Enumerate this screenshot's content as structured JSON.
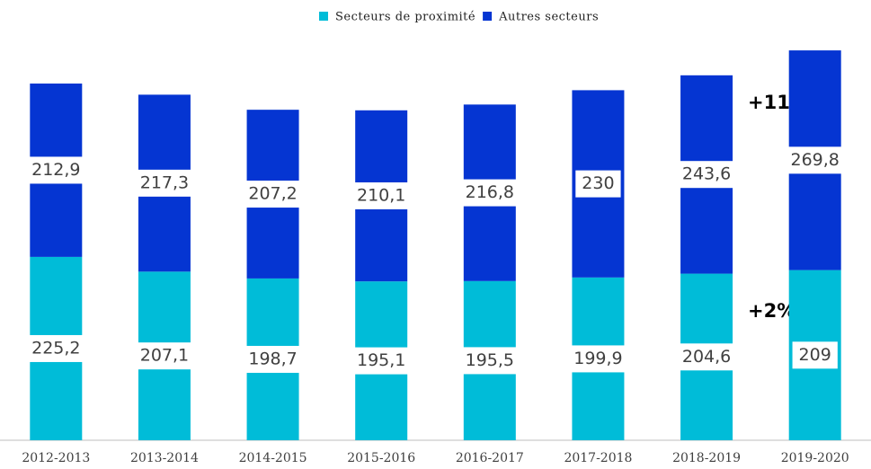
{
  "chart_data": {
    "type": "stacked_bar",
    "categories": [
      "2012-2013",
      "2013-2014",
      "2014-2015",
      "2015-2016",
      "2016-2017",
      "2017-2018",
      "2018-2019",
      "2019-2020"
    ],
    "series": [
      {
        "name": "Secteurs de proximité",
        "color": "#00bcd8",
        "values": [
          225.2,
          207.1,
          198.7,
          195.1,
          195.5,
          199.9,
          204.6,
          209
        ],
        "value_labels": [
          "225,2",
          "207,1",
          "198,7",
          "195,1",
          "195,5",
          "199,9",
          "204,6",
          "209"
        ]
      },
      {
        "name": "Autres secteurs",
        "color": "#0535d2",
        "values": [
          212.9,
          217.3,
          207.2,
          210.1,
          216.8,
          230,
          243.6,
          269.8
        ],
        "value_labels": [
          "212,9",
          "217,3",
          "207,2",
          "210,1",
          "216,8",
          "230",
          "243,6",
          "269,8"
        ]
      }
    ],
    "ylim": [
      0,
      480
    ],
    "legend": "top",
    "annotations": [
      "+11%",
      "+2%"
    ]
  }
}
